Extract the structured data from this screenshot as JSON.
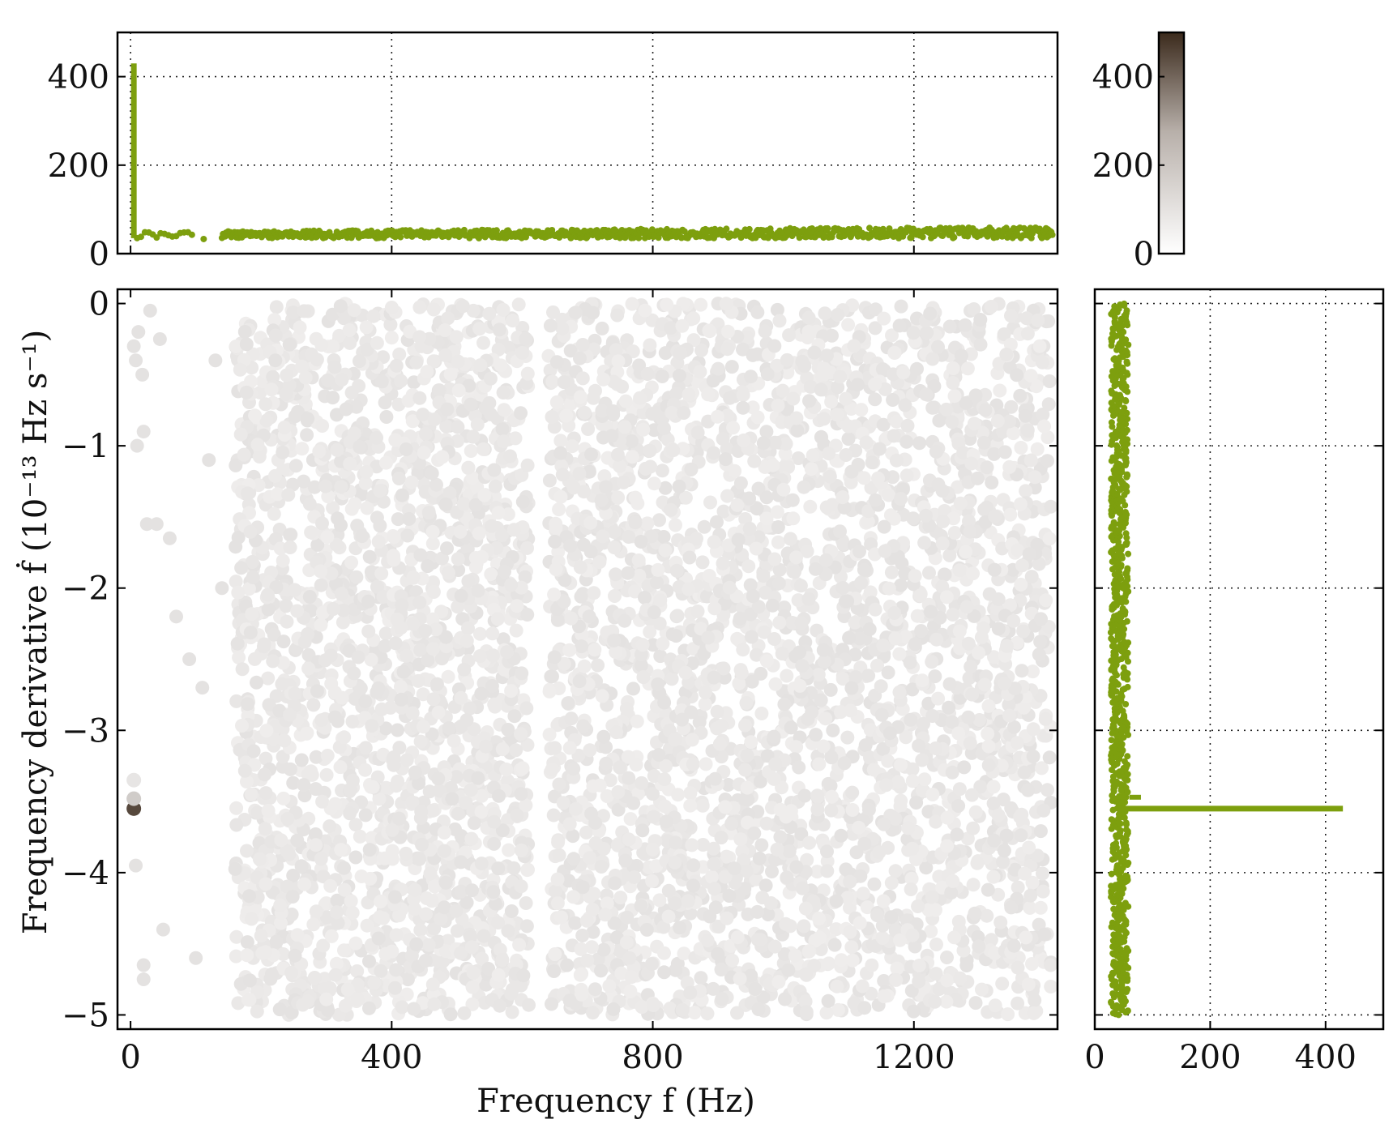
{
  "chart_data": [
    {
      "panel": "main",
      "type": "scatter",
      "xlabel": "Frequency  f  (Hz)",
      "ylabel": "Frequency derivative  ḟ  (10⁻¹³ Hz s⁻¹)",
      "xlim": [
        -20,
        1420
      ],
      "ylim": [
        -5.1,
        0.1
      ],
      "xticks": [
        0,
        400,
        800,
        1200
      ],
      "yticks": [
        0,
        -1,
        -2,
        -3,
        -4,
        -5
      ],
      "grid": false,
      "colormap": "white-to-dark-brown",
      "density_bands": [
        {
          "x_range": [
            160,
            400
          ],
          "y_range": [
            -5,
            0
          ]
        },
        {
          "x_range": [
            400,
            610
          ],
          "y_range": [
            -5,
            0
          ]
        },
        {
          "x_range": [
            640,
            880
          ],
          "y_range": [
            -5,
            0
          ]
        },
        {
          "x_range": [
            880,
            1140
          ],
          "y_range": [
            -5,
            0
          ]
        },
        {
          "x_range": [
            1140,
            1410
          ],
          "y_range": [
            -5,
            0
          ]
        }
      ],
      "highlight_points": [
        {
          "x": 5,
          "y": -3.55,
          "value": 430
        },
        {
          "x": 5,
          "y": -3.48,
          "value": 120
        },
        {
          "x": 5,
          "y": -3.35,
          "value": 60
        }
      ]
    },
    {
      "panel": "top",
      "type": "scatter",
      "xlim": [
        -20,
        1420
      ],
      "ylim": [
        0,
        500
      ],
      "xticks": [
        0,
        400,
        800,
        1200
      ],
      "yticks": [
        0,
        200,
        400
      ],
      "grid": true,
      "color": "#7d9f0e",
      "spike": {
        "x": 5,
        "y_max": 430
      },
      "baseline_range": [
        35,
        60
      ]
    },
    {
      "panel": "right",
      "type": "scatter",
      "xlim": [
        0,
        500
      ],
      "ylim": [
        -5.1,
        0.1
      ],
      "xticks": [
        0,
        200,
        400
      ],
      "grid": true,
      "color": "#7d9f0e",
      "baseline_range": [
        25,
        65
      ],
      "spike": {
        "y": -3.55,
        "x_max": 430
      }
    },
    {
      "panel": "colorbar",
      "type": "colorbar",
      "range": [
        0,
        500
      ],
      "ticks": [
        0,
        200,
        400
      ],
      "colors": [
        "#ffffff",
        "#3b2a1c"
      ]
    }
  ]
}
